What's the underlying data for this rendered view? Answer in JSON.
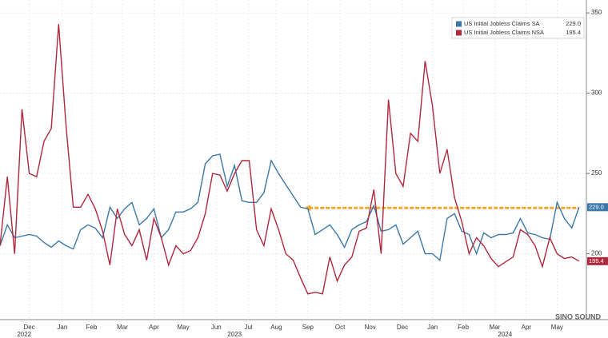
{
  "chart_data": {
    "type": "line",
    "x": [
      0,
      1,
      2,
      3,
      4,
      5,
      6,
      7,
      8,
      9,
      10,
      11,
      12,
      13,
      14,
      15,
      16,
      17,
      18,
      19,
      20,
      21,
      22,
      23,
      24,
      25,
      26,
      27,
      28,
      29,
      30,
      31,
      32,
      33,
      34,
      35,
      36,
      37,
      38,
      39,
      40,
      41,
      42,
      43,
      44,
      45,
      46,
      47,
      48,
      49,
      50,
      51,
      52,
      53,
      54,
      55,
      56,
      57,
      58,
      59,
      60,
      61,
      62,
      63,
      64,
      65,
      66,
      67,
      68,
      69,
      70,
      71,
      72,
      73,
      74,
      75,
      76,
      77,
      78,
      79
    ],
    "series": [
      {
        "name": "US Initial Jobless Claims SA",
        "last_label": "229.0",
        "color": "#3a78a8",
        "values": [
          205,
          218,
          210,
          211,
          212,
          211,
          207,
          204,
          208,
          205,
          203,
          215,
          218,
          216,
          210,
          229,
          222,
          228,
          232,
          218,
          222,
          228,
          210,
          215,
          226,
          226,
          228,
          232,
          256,
          261,
          262,
          242,
          255,
          233,
          232,
          232,
          238,
          258,
          250,
          243,
          236,
          229,
          228,
          212,
          215,
          218,
          212,
          204,
          215,
          218,
          220,
          230,
          214,
          215,
          218,
          206,
          210,
          214,
          200,
          200,
          196,
          222,
          225,
          214,
          212,
          200,
          213,
          210,
          212,
          212,
          213,
          222,
          213,
          212,
          210,
          209,
          232,
          222,
          216,
          229
        ]
      },
      {
        "name": "US Initial Jobless Claims NSA",
        "last_label": "195.4",
        "color": "#b0283c",
        "values": [
          205,
          248,
          200,
          290,
          250,
          248,
          270,
          278,
          343,
          280,
          229,
          229,
          237,
          228,
          214,
          193,
          228,
          212,
          205,
          215,
          196,
          222,
          210,
          193,
          205,
          200,
          202,
          210,
          225,
          250,
          249,
          239,
          250,
          258,
          258,
          215,
          205,
          228,
          215,
          200,
          196,
          185,
          175,
          176,
          175,
          198,
          183,
          193,
          198,
          214,
          216,
          240,
          200,
          296,
          250,
          242,
          275,
          270,
          320,
          292,
          250,
          265,
          235,
          220,
          200,
          210,
          205,
          197,
          192,
          195,
          198,
          215,
          212,
          205,
          192,
          210,
          200,
          197,
          198,
          195.4
        ]
      }
    ],
    "reference_arrow": {
      "from": 41.5,
      "to": 79,
      "value": 228.5,
      "color": "#f0a830"
    },
    "xlim": [
      0,
      80
    ],
    "xticks": [
      {
        "value": 4,
        "label": "Dec"
      },
      {
        "value": 8.5,
        "label": "Jan"
      },
      {
        "value": 12.5,
        "label": "Feb"
      },
      {
        "value": 16.7,
        "label": "Mar"
      },
      {
        "value": 21,
        "label": "Apr"
      },
      {
        "value": 25,
        "label": "May"
      },
      {
        "value": 29.5,
        "label": "Jun"
      },
      {
        "value": 33.9,
        "label": "Jul"
      },
      {
        "value": 37.7,
        "label": "Aug"
      },
      {
        "value": 42,
        "label": "Sep"
      },
      {
        "value": 46.4,
        "label": "Oct"
      },
      {
        "value": 50.5,
        "label": "Nov"
      },
      {
        "value": 54.9,
        "label": "Dec"
      },
      {
        "value": 59,
        "label": "Jan"
      },
      {
        "value": 63.2,
        "label": "Feb"
      },
      {
        "value": 67.5,
        "label": "Mar"
      },
      {
        "value": 71.8,
        "label": "Apr"
      },
      {
        "value": 76,
        "label": "May"
      }
    ],
    "year_ticks": [
      {
        "value": 3.3,
        "label": "2022"
      },
      {
        "value": 32,
        "label": "2023"
      },
      {
        "value": 68.9,
        "label": "2024"
      }
    ],
    "ylim": [
      159,
      358
    ],
    "yticks": [
      200,
      250,
      300,
      350
    ],
    "grid": true,
    "watermark": "SINO SOUND"
  }
}
